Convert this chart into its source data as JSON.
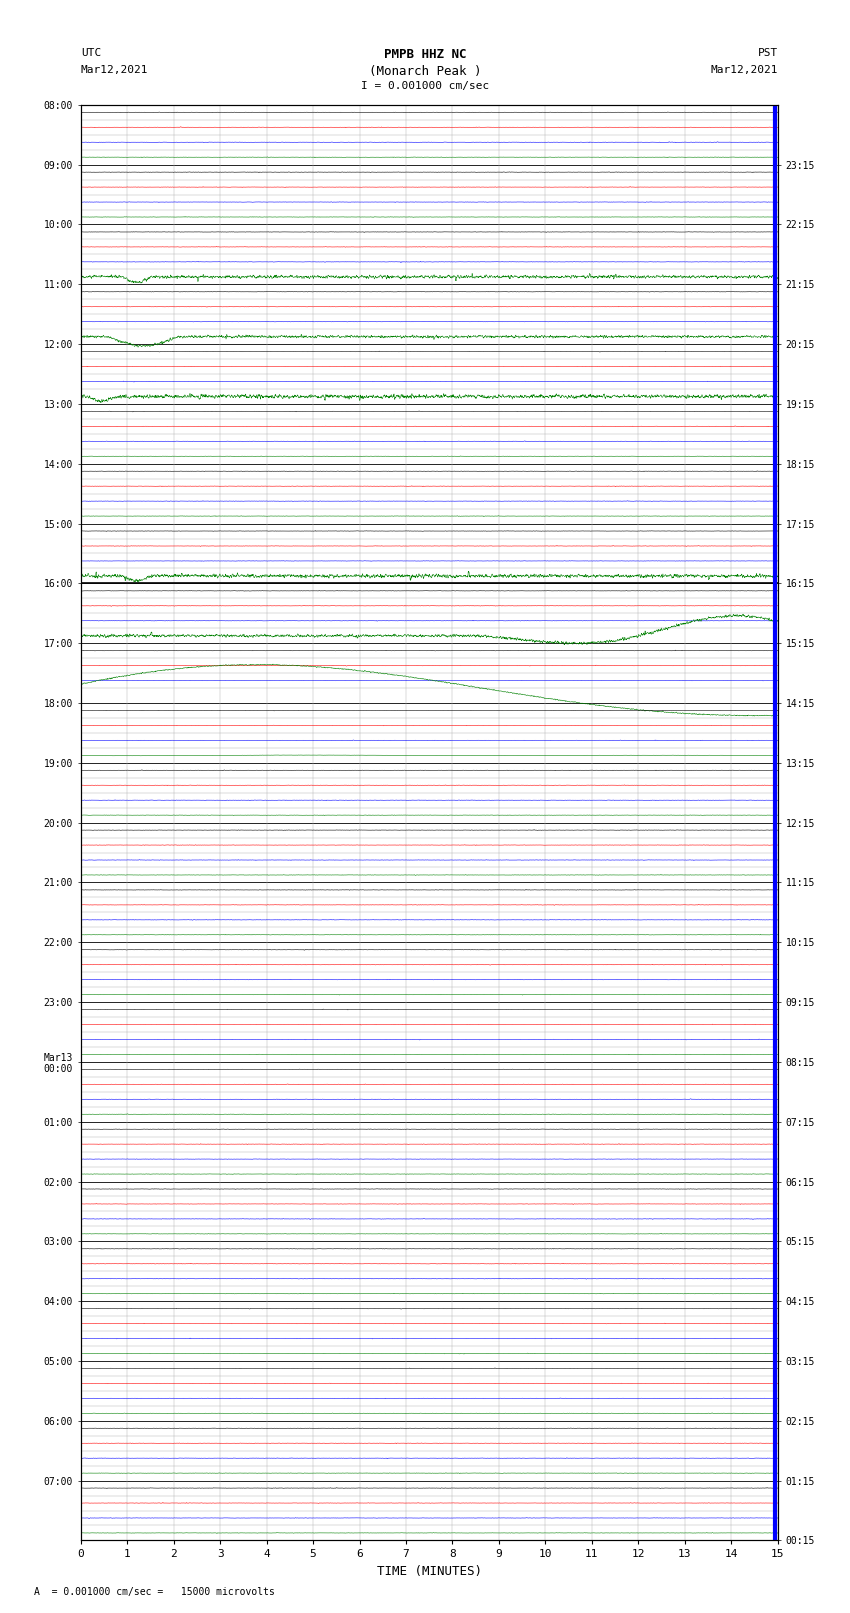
{
  "title_line1": "PMPB HHZ NC",
  "title_line2": "(Monarch Peak )",
  "title_scale": "I = 0.001000 cm/sec",
  "left_label_line1": "UTC",
  "left_label_line2": "Mar12,2021",
  "right_label_line1": "PST",
  "right_label_line2": "Mar12,2021",
  "xlabel": "TIME (MINUTES)",
  "footnote": "A  = 0.001000 cm/sec =   15000 microvolts",
  "utc_times": [
    "08:00",
    "09:00",
    "10:00",
    "11:00",
    "12:00",
    "13:00",
    "14:00",
    "15:00",
    "16:00",
    "17:00",
    "18:00",
    "19:00",
    "20:00",
    "21:00",
    "22:00",
    "23:00",
    "Mar13\n00:00",
    "01:00",
    "02:00",
    "03:00",
    "04:00",
    "05:00",
    "06:00",
    "07:00"
  ],
  "pst_times": [
    "00:15",
    "01:15",
    "02:15",
    "03:15",
    "04:15",
    "05:15",
    "06:15",
    "07:15",
    "08:15",
    "09:15",
    "10:15",
    "11:15",
    "12:15",
    "13:15",
    "14:15",
    "15:15",
    "16:15",
    "17:15",
    "18:15",
    "19:15",
    "20:15",
    "21:15",
    "22:15",
    "23:15"
  ],
  "n_rows": 24,
  "minutes_per_row": 15,
  "bg_color": "#ffffff",
  "grid_major_color": "#000000",
  "grid_minor_color": "#aaaaaa",
  "trace_color_black": "#000000",
  "trace_color_red": "#ff0000",
  "trace_color_blue": "#0000ff",
  "trace_color_green": "#008000",
  "right_bar_color": "#0000ff",
  "sub_traces": 4,
  "sub_trace_colors": [
    "#000000",
    "#ff0000",
    "#0000ff",
    "#008000"
  ]
}
